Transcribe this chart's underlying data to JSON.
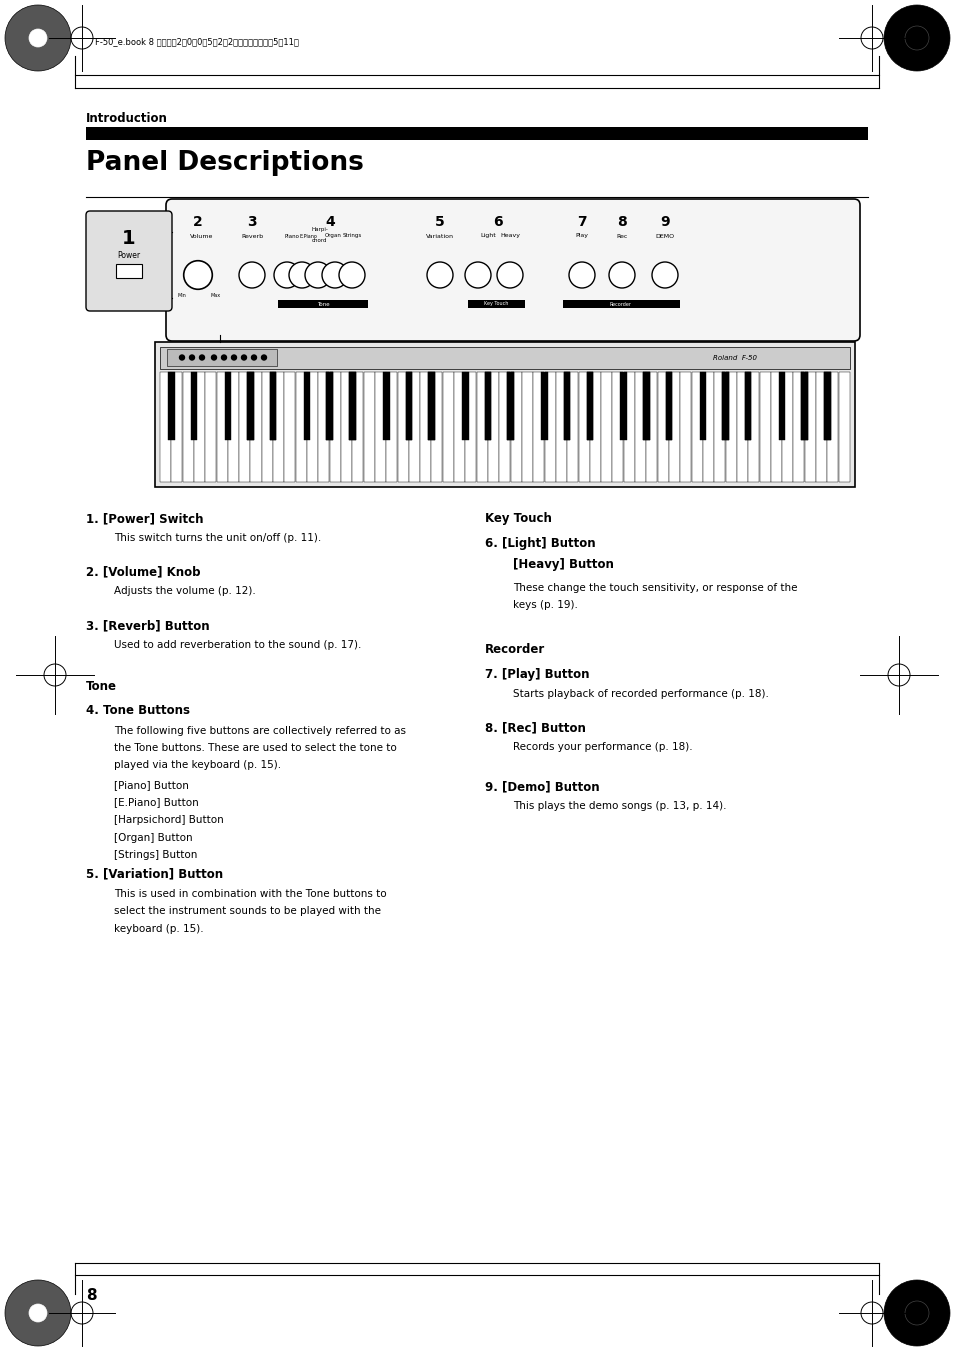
{
  "page_bg": "#ffffff",
  "header_text": "F-50_e.book 8ページ　2　0　0　5年2朎2日　水曜日　午後5時11分",
  "intro_label": "Introduction",
  "title": "Panel Descriptions",
  "section1_heading": "1. [Power] Switch",
  "section1_body": "This switch turns the unit on/off (p. 11).",
  "section2_heading": "2. [Volume] Knob",
  "section2_body": "Adjusts the volume (p. 12).",
  "section3_heading": "3. [Reverb] Button",
  "section3_body": "Used to add reverberation to the sound (p. 17).",
  "tone_label": "Tone",
  "section4_heading": "4. Tone Buttons",
  "section4_body1": "The following five buttons are collectively referred to as",
  "section4_body2": "the Tone buttons. These are used to select the tone to",
  "section4_body3": "played via the keyboard (p. 15).",
  "section4_list": [
    "[Piano] Button",
    "[E.Piano] Button",
    "[Harpsichord] Button",
    "[Organ] Button",
    "[Strings] Button"
  ],
  "section5_heading": "5. [Variation] Button",
  "section5_body1": "This is used in combination with the Tone buttons to",
  "section5_body2": "select the instrument sounds to be played with the",
  "section5_body3": "keyboard (p. 15).",
  "keytouch_label": "Key Touch",
  "section6_heading1": "6. [Light] Button",
  "section6_heading2": "    [Heavy] Button",
  "section6_body1": "These change the touch sensitivity, or response of the",
  "section6_body2": "keys (p. 19).",
  "recorder_label": "Recorder",
  "section7_heading": "7. [Play] Button",
  "section7_body": "Starts playback of recorded performance (p. 18).",
  "section8_heading": "8. [Rec] Button",
  "section8_body": "Records your performance (p. 18).",
  "section9_heading": "9. [Demo] Button",
  "section9_body": "This plays the demo songs (p. 13, p. 14).",
  "page_number": "8"
}
